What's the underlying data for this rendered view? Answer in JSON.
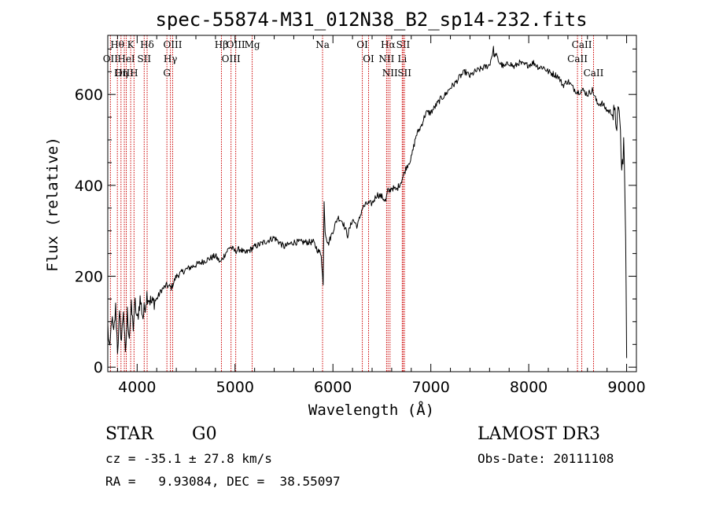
{
  "chart_data": {
    "type": "line",
    "title": "spec-55874-M31_012N38_B2_sp14-232.fits",
    "xlabel": "Wavelength (Å)",
    "ylabel": "Flux (relative)",
    "xlim": [
      3700,
      9100
    ],
    "ylim": [
      -10,
      730
    ],
    "x_ticks": [
      4000,
      5000,
      6000,
      7000,
      8000,
      9000
    ],
    "y_ticks": [
      0,
      200,
      400,
      600
    ],
    "series": [
      {
        "name": "flux",
        "x": [
          3700,
          3720,
          3740,
          3760,
          3780,
          3800,
          3820,
          3840,
          3860,
          3880,
          3900,
          3920,
          3940,
          3960,
          3980,
          4000,
          4030,
          4060,
          4100,
          4150,
          4200,
          4250,
          4300,
          4350,
          4400,
          4500,
          4600,
          4700,
          4800,
          4850,
          4900,
          4950,
          5000,
          5050,
          5100,
          5200,
          5300,
          5400,
          5500,
          5600,
          5700,
          5800,
          5850,
          5880,
          5900,
          5910,
          5920,
          5950,
          6000,
          6050,
          6100,
          6150,
          6200,
          6250,
          6300,
          6350,
          6400,
          6450,
          6500,
          6540,
          6560,
          6570,
          6600,
          6650,
          6700,
          6750,
          6800,
          6850,
          6900,
          6950,
          7000,
          7050,
          7100,
          7150,
          7200,
          7250,
          7300,
          7350,
          7400,
          7450,
          7500,
          7550,
          7600,
          7640,
          7650,
          7660,
          7700,
          7750,
          7800,
          7850,
          7900,
          7950,
          8000,
          8050,
          8100,
          8150,
          8200,
          8250,
          8300,
          8350,
          8400,
          8450,
          8500,
          8550,
          8600,
          8650,
          8700,
          8750,
          8800,
          8850,
          8900,
          8930,
          8950,
          8970,
          8990,
          9000
        ],
        "y": [
          90,
          30,
          110,
          70,
          130,
          40,
          110,
          60,
          130,
          20,
          120,
          70,
          130,
          90,
          140,
          100,
          150,
          110,
          160,
          140,
          150,
          170,
          180,
          175,
          200,
          215,
          225,
          235,
          245,
          230,
          250,
          265,
          255,
          260,
          250,
          265,
          275,
          285,
          265,
          275,
          275,
          275,
          255,
          250,
          180,
          370,
          300,
          270,
          300,
          330,
          320,
          290,
          325,
          310,
          350,
          360,
          360,
          380,
          375,
          365,
          390,
          385,
          395,
          390,
          410,
          440,
          460,
          510,
          530,
          560,
          560,
          575,
          590,
          600,
          615,
          625,
          640,
          650,
          640,
          650,
          655,
          660,
          665,
          700,
          680,
          690,
          670,
          660,
          670,
          660,
          670,
          665,
          665,
          670,
          660,
          660,
          650,
          645,
          640,
          620,
          630,
          615,
          605,
          610,
          600,
          610,
          580,
          580,
          565,
          560,
          540,
          560,
          420,
          500,
          290,
          20
        ]
      }
    ],
    "emission_lines": [
      {
        "name": "Hθ",
        "wave": 3798
      },
      {
        "name": "OII",
        "wave": 3727
      },
      {
        "name": "OIII",
        "wave": 3869
      },
      {
        "name": "K",
        "wave": 3934
      },
      {
        "name": "HeI",
        "wave": 3889
      },
      {
        "name": "Hη",
        "wave": 3835
      },
      {
        "name": "H",
        "wave": 3968
      },
      {
        "name": "Hδ",
        "wave": 4102
      },
      {
        "name": "SII",
        "wave": 4072
      },
      {
        "name": "OIII",
        "wave": 4363
      },
      {
        "name": "Hγ",
        "wave": 4340
      },
      {
        "name": "G",
        "wave": 4304
      },
      {
        "name": "Hβ",
        "wave": 4861
      },
      {
        "name": "OIII",
        "wave": 5007
      },
      {
        "name": "OIII",
        "wave": 4959
      },
      {
        "name": "Mg",
        "wave": 5175
      },
      {
        "name": "Na",
        "wave": 5894
      },
      {
        "name": "OI",
        "wave": 6300
      },
      {
        "name": "OI",
        "wave": 6364
      },
      {
        "name": "Hα",
        "wave": 6563
      },
      {
        "name": "NII",
        "wave": 6548
      },
      {
        "name": "NII",
        "wave": 6583
      },
      {
        "name": "SII",
        "wave": 6717
      },
      {
        "name": "Li",
        "wave": 6708
      },
      {
        "name": "SII",
        "wave": 6731
      },
      {
        "name": "CaII",
        "wave": 8542
      },
      {
        "name": "CaII",
        "wave": 8498
      },
      {
        "name": "CaII",
        "wave": 8662
      }
    ],
    "colors": {
      "spectrum": "#000000",
      "lines": "#cc0000",
      "axes": "#000000"
    }
  },
  "info": {
    "class": "STAR",
    "subclass": "G0",
    "survey": "LAMOST DR3",
    "cz": "cz = -35.1 ± 27.8 km/s",
    "obs_date": "Obs-Date: 20111108",
    "radec": "RA =   9.93084, DEC =  38.55097"
  }
}
